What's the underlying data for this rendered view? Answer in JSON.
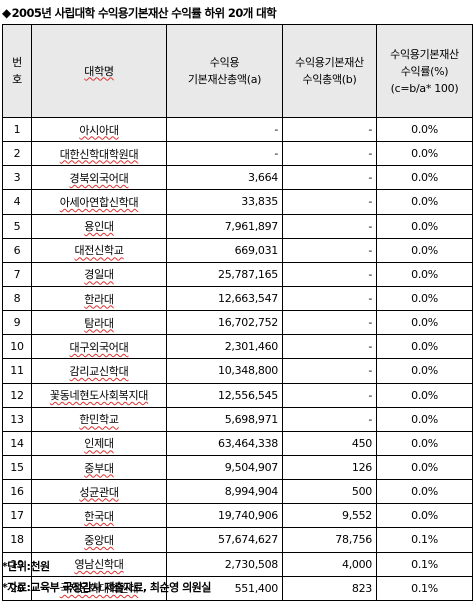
{
  "title": "2005년 사립대학 수익용기본재산 수익률 하위 20개 대학",
  "headers": {
    "no": [
      "번",
      "호"
    ],
    "name": "대학명",
    "total": [
      "수익용",
      "기본재산총액(a)"
    ],
    "income": [
      "수익용기본재산",
      "수익총액(b)"
    ],
    "rate": [
      "수익용기본재산",
      "수익률(%)",
      "(c=b/a* 100)"
    ]
  },
  "rows": [
    {
      "no": "1",
      "name": "아시아대",
      "total": "-",
      "income": "-",
      "rate": "0.0%"
    },
    {
      "no": "2",
      "name": "대한신학대학원대",
      "total": "-",
      "income": "-",
      "rate": "0.0%"
    },
    {
      "no": "3",
      "name": "경북외국어대",
      "total": "3,664",
      "income": "-",
      "rate": "0.0%"
    },
    {
      "no": "4",
      "name": "아세아연합신학대",
      "total": "33,835",
      "income": "-",
      "rate": "0.0%"
    },
    {
      "no": "5",
      "name": "용인대",
      "total": "7,961,897",
      "income": "-",
      "rate": "0.0%"
    },
    {
      "no": "6",
      "name": "대전신학교",
      "total": "669,031",
      "income": "-",
      "rate": "0.0%"
    },
    {
      "no": "7",
      "name": "경일대",
      "total": "25,787,165",
      "income": "-",
      "rate": "0.0%"
    },
    {
      "no": "8",
      "name": "한라대",
      "total": "12,663,547",
      "income": "-",
      "rate": "0.0%"
    },
    {
      "no": "9",
      "name": "탐라대",
      "total": "16,702,752",
      "income": "-",
      "rate": "0.0%"
    },
    {
      "no": "10",
      "name": "대구외국어대",
      "total": "2,301,460",
      "income": "-",
      "rate": "0.0%"
    },
    {
      "no": "11",
      "name": "감리교신학대",
      "total": "10,348,800",
      "income": "-",
      "rate": "0.0%"
    },
    {
      "no": "12",
      "name": "꽃동네현도사회복지대",
      "total": "12,556,545",
      "income": "-",
      "rate": "0.0%"
    },
    {
      "no": "13",
      "name": "한민학교",
      "total": "5,698,971",
      "income": "-",
      "rate": "0.0%"
    },
    {
      "no": "14",
      "name": "인제대",
      "total": "63,464,338",
      "income": "450",
      "rate": "0.0%"
    },
    {
      "no": "15",
      "name": "중부대",
      "total": "9,504,907",
      "income": "126",
      "rate": "0.0%"
    },
    {
      "no": "16",
      "name": "성균관대",
      "total": "8,994,904",
      "income": "500",
      "rate": "0.0%"
    },
    {
      "no": "17",
      "name": "한국대",
      "total": "19,740,906",
      "income": "9,552",
      "rate": "0.0%"
    },
    {
      "no": "18",
      "name": "중앙대",
      "total": "57,674,627",
      "income": "78,756",
      "rate": "0.1%"
    },
    {
      "no": "19",
      "name": "영남신학대",
      "total": "2,730,508",
      "income": "4,000",
      "rate": "0.1%"
    },
    {
      "no": "20",
      "name": "국제문화대학원대",
      "total": "551,400",
      "income": "823",
      "rate": "0.1%"
    }
  ],
  "notes": {
    "unit": "*단위:천원",
    "source": "*자료:교육부 국정감사 제출자료, 최순영 의원실"
  }
}
